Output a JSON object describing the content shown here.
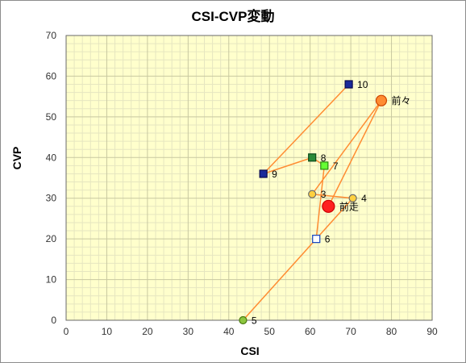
{
  "chart_data": {
    "type": "scatter",
    "title": "CSI-CVP変動",
    "xlabel": "CSI",
    "ylabel": "CVP",
    "xlim": [
      0,
      90
    ],
    "ylim": [
      0,
      70
    ],
    "xticks": [
      0,
      10,
      20,
      30,
      40,
      50,
      60,
      70,
      80,
      90
    ],
    "yticks": [
      0,
      10,
      20,
      30,
      40,
      50,
      60,
      70
    ],
    "grid": true,
    "colors": {
      "plot_background": "#ffffcc",
      "grid_major": "#c8c8a0",
      "grid_minor": "#e6e6c0",
      "line": "#ff8c32"
    },
    "path_order": [
      "前走",
      "前々",
      "3",
      "4",
      "5",
      "6",
      "7",
      "8",
      "9",
      "10"
    ],
    "points": [
      {
        "label": "前走",
        "x": 64.5,
        "y": 28,
        "marker": "circle",
        "fill": "#ff2020",
        "stroke": "#cc0000",
        "size": "large"
      },
      {
        "label": "前々",
        "x": 77.5,
        "y": 54,
        "marker": "circle",
        "fill": "#ff8c32",
        "stroke": "#cc4400",
        "size": "medium"
      },
      {
        "label": "3",
        "x": 60.5,
        "y": 31,
        "marker": "circle",
        "fill": "#ffd040",
        "stroke": "#6a6a6a",
        "size": "small"
      },
      {
        "label": "4",
        "x": 70.5,
        "y": 30,
        "marker": "circle",
        "fill": "#ffd040",
        "stroke": "#6a6a6a",
        "size": "small"
      },
      {
        "label": "5",
        "x": 43.5,
        "y": 0,
        "marker": "circle",
        "fill": "#8cc63f",
        "stroke": "#4a7a10",
        "size": "small"
      },
      {
        "label": "6",
        "x": 61.5,
        "y": 20,
        "marker": "square",
        "fill": "#ffffff",
        "stroke": "#1040c0",
        "size": "small"
      },
      {
        "label": "7",
        "x": 63.5,
        "y": 38,
        "marker": "square",
        "fill": "#66ff33",
        "stroke": "#2a8a10",
        "size": "small"
      },
      {
        "label": "8",
        "x": 60.5,
        "y": 40,
        "marker": "square",
        "fill": "#2a8a3a",
        "stroke": "#0a4a1a",
        "size": "small"
      },
      {
        "label": "9",
        "x": 48.5,
        "y": 36,
        "marker": "square",
        "fill": "#1a2a9a",
        "stroke": "#0a0a50",
        "size": "small"
      },
      {
        "label": "10",
        "x": 69.5,
        "y": 58,
        "marker": "square",
        "fill": "#1a2a9a",
        "stroke": "#0a0a50",
        "size": "small"
      }
    ]
  }
}
